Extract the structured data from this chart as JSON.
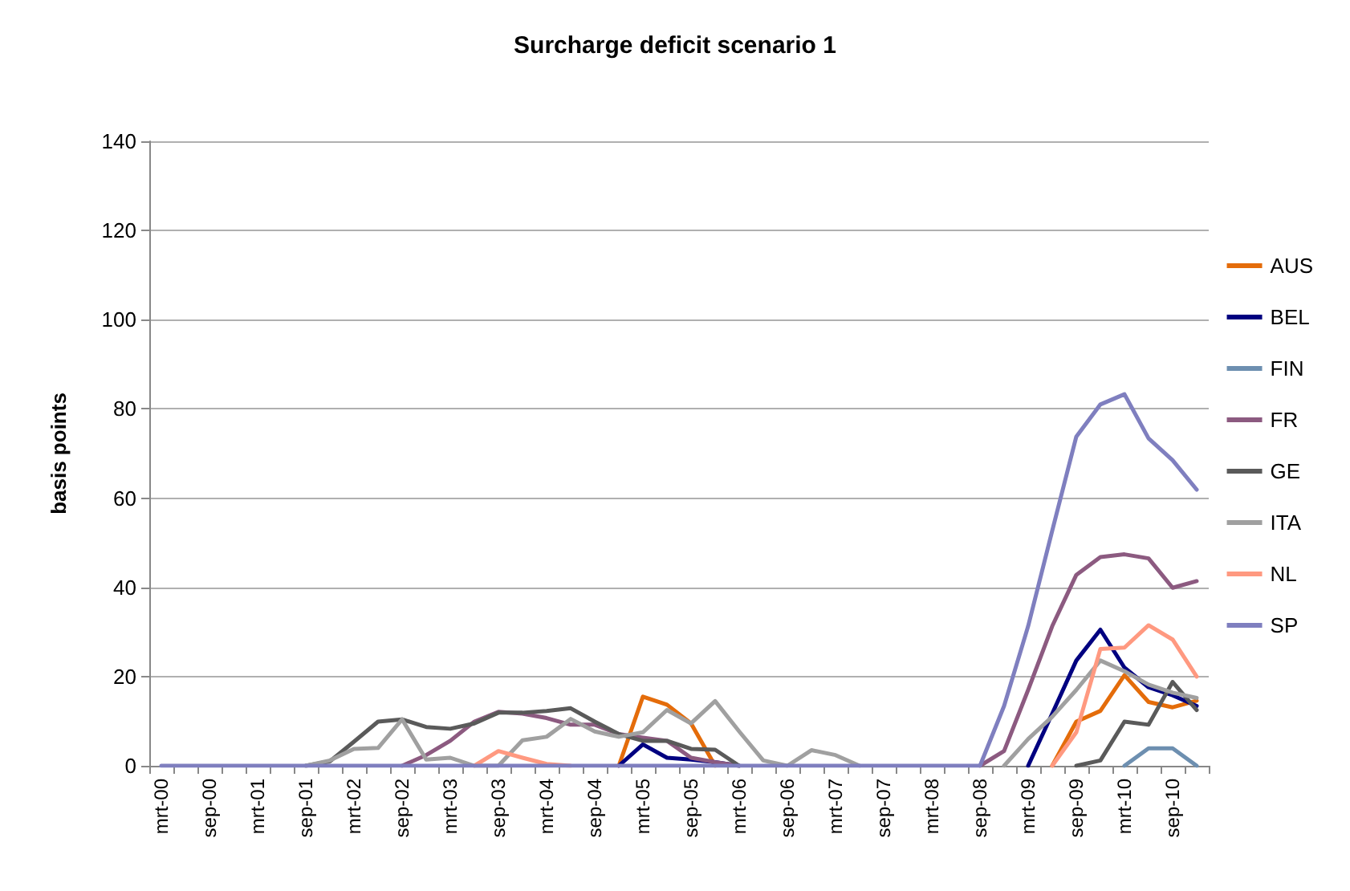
{
  "chart_data": {
    "type": "line",
    "title": "Surcharge deficit scenario 1",
    "ylabel": "basis points",
    "categories": [
      "mrt-00",
      null,
      "sep-00",
      null,
      "mrt-01",
      null,
      "sep-01",
      null,
      "mrt-02",
      null,
      "sep-02",
      null,
      "mrt-03",
      null,
      "sep-03",
      null,
      "mrt-04",
      null,
      "sep-04",
      null,
      "mrt-05",
      null,
      "sep-05",
      null,
      "mrt-06",
      null,
      "sep-06",
      null,
      "mrt-07",
      null,
      "sep-07",
      null,
      "mrt-08",
      null,
      "sep-08",
      null,
      "mrt-09",
      null,
      "sep-09",
      null,
      "mrt-10",
      null,
      "sep-10",
      null
    ],
    "series": [
      {
        "name": "AUS",
        "color": "#e46c0a",
        "values": [
          null,
          null,
          null,
          null,
          null,
          null,
          null,
          null,
          null,
          null,
          null,
          null,
          null,
          null,
          null,
          null,
          null,
          null,
          null,
          0,
          15.5,
          13.7,
          9.5,
          0,
          null,
          null,
          null,
          null,
          null,
          null,
          null,
          null,
          null,
          null,
          null,
          null,
          null,
          0,
          9.9,
          12.3,
          20.3,
          14.3,
          13.1,
          14.6
        ]
      },
      {
        "name": "BEL",
        "color": "#000080",
        "values": [
          null,
          null,
          null,
          null,
          null,
          null,
          null,
          null,
          null,
          null,
          null,
          null,
          null,
          null,
          null,
          null,
          null,
          null,
          null,
          0,
          4.8,
          1.8,
          1.4,
          0.8,
          0,
          null,
          null,
          null,
          null,
          null,
          null,
          null,
          null,
          null,
          null,
          null,
          0,
          11.7,
          23.6,
          30.5,
          22,
          17.6,
          15.8,
          13.4
        ]
      },
      {
        "name": "FIN",
        "color": "#6d8fb0",
        "values": [
          null,
          null,
          null,
          null,
          null,
          null,
          null,
          null,
          null,
          null,
          null,
          null,
          null,
          null,
          null,
          null,
          null,
          null,
          null,
          null,
          null,
          null,
          null,
          null,
          null,
          null,
          null,
          null,
          null,
          null,
          null,
          null,
          null,
          null,
          null,
          null,
          null,
          null,
          null,
          null,
          0,
          3.9,
          3.9,
          0
        ]
      },
      {
        "name": "FR",
        "color": "#8c5a80",
        "values": [
          null,
          null,
          null,
          null,
          null,
          null,
          null,
          null,
          null,
          null,
          0,
          2.4,
          5.6,
          9.9,
          12.1,
          11.7,
          10.7,
          9.2,
          9.2,
          7.1,
          6.3,
          5.6,
          1.8,
          0.8,
          0,
          null,
          null,
          null,
          null,
          null,
          null,
          null,
          null,
          null,
          0,
          3.3,
          17,
          31.3,
          42.8,
          46.8,
          47.4,
          46.5,
          39.9,
          41.4
        ]
      },
      {
        "name": "GE",
        "color": "#5a5a5a",
        "values": [
          null,
          null,
          null,
          null,
          null,
          null,
          0,
          1,
          5.4,
          9.9,
          10.4,
          8.7,
          8.3,
          9.5,
          11.9,
          11.9,
          12.3,
          12.9,
          9.9,
          7.1,
          5.6,
          5.6,
          3.8,
          3.6,
          0,
          null,
          null,
          null,
          null,
          null,
          null,
          null,
          null,
          null,
          null,
          null,
          null,
          null,
          0,
          1.2,
          9.9,
          9.2,
          18.8,
          12.5
        ]
      },
      {
        "name": "ITA",
        "color": "#a0a0a0",
        "values": [
          null,
          null,
          null,
          null,
          null,
          null,
          0,
          1.2,
          3.8,
          4,
          10.4,
          1.4,
          1.8,
          0,
          0,
          5.7,
          6.5,
          10.5,
          7.7,
          6.5,
          7.5,
          12.5,
          9.5,
          14.5,
          7.7,
          1.2,
          0,
          3.5,
          2.4,
          0,
          null,
          null,
          null,
          null,
          null,
          0,
          6,
          11,
          17,
          23.6,
          21.2,
          18.2,
          16.4,
          15.2
        ]
      },
      {
        "name": "NL",
        "color": "#ff9980",
        "values": [
          null,
          null,
          null,
          null,
          null,
          null,
          null,
          null,
          null,
          null,
          null,
          null,
          null,
          0,
          3.3,
          1.8,
          0.4,
          0,
          null,
          null,
          null,
          null,
          null,
          null,
          null,
          null,
          null,
          null,
          null,
          null,
          null,
          null,
          null,
          null,
          null,
          null,
          null,
          0,
          7.5,
          26.2,
          26.5,
          31.5,
          28.3,
          20
        ]
      },
      {
        "name": "SP",
        "color": "#7f7fbf",
        "values": [
          0,
          0,
          0,
          0,
          0,
          0,
          0,
          0,
          0,
          0,
          0,
          0,
          0,
          0,
          0,
          0,
          0,
          0,
          0,
          0,
          0,
          0,
          0,
          0,
          0,
          0,
          0,
          0,
          0,
          0,
          0,
          0,
          0,
          0,
          0,
          13.4,
          31.3,
          52.7,
          73.8,
          81,
          83.3,
          73.4,
          68.5,
          61.9
        ]
      }
    ],
    "ylim": [
      0,
      140
    ],
    "yticks": [
      0,
      20,
      40,
      60,
      80,
      100,
      120,
      140
    ],
    "grid": "y",
    "legend": "right",
    "marker": "none",
    "line_style": "solid"
  }
}
